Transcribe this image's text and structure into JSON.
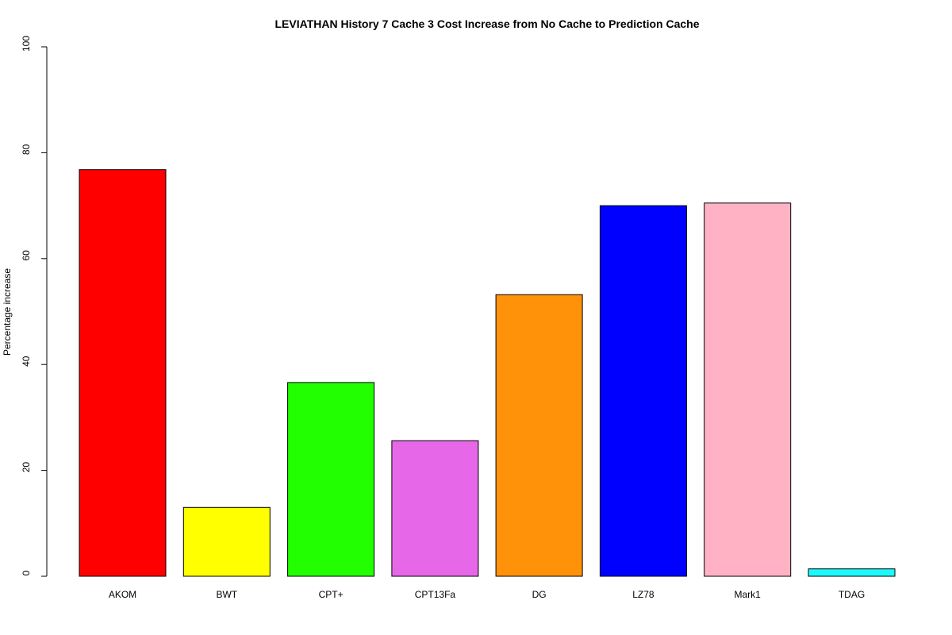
{
  "chart_data": {
    "type": "bar",
    "title": "LEVIATHAN  History  7  Cache  3  Cost Increase from No Cache to Prediction Cache",
    "xlabel": "",
    "ylabel": "Percentage increase",
    "ylim": [
      0,
      100
    ],
    "yticks": [
      0,
      20,
      40,
      60,
      80,
      100
    ],
    "grid": false,
    "legend": "none",
    "categories": [
      "AKOM",
      "BWT",
      "CPT+",
      "CPT13Fa",
      "DG",
      "LZ78",
      "Mark1",
      "TDAG"
    ],
    "values": [
      76.8,
      13.0,
      36.6,
      25.6,
      53.2,
      70.0,
      70.5,
      1.4
    ],
    "colors": [
      "#ff0000",
      "#ffff00",
      "#22ff00",
      "#e668e8",
      "#ff9209",
      "#0000ff",
      "#ffb2c4",
      "#1cf9fc"
    ]
  }
}
